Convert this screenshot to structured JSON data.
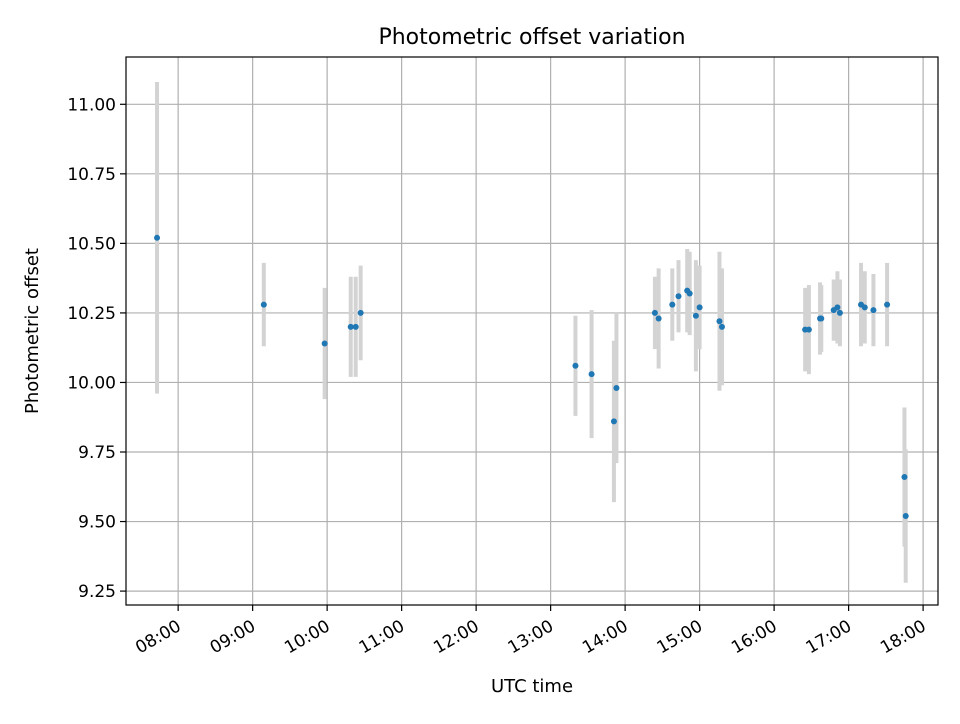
{
  "chart_data": {
    "type": "scatter",
    "title": "Photometric offset variation",
    "xlabel": "UTC time",
    "ylabel": "Photometric offset",
    "x_ticks": [
      "08:00",
      "09:00",
      "10:00",
      "11:00",
      "12:00",
      "13:00",
      "14:00",
      "15:00",
      "16:00",
      "17:00",
      "18:00"
    ],
    "y_ticks": [
      "9.25",
      "9.50",
      "9.75",
      "10.00",
      "10.25",
      "10.50",
      "10.75",
      "11.00"
    ],
    "x_range": [
      "07:18",
      "18:12"
    ],
    "y_range": [
      9.2,
      11.17
    ],
    "grid": true,
    "colors": {
      "point": "#1f77b4",
      "errorbar": "#d3d3d3",
      "grid": "#b0b0b0"
    },
    "points": [
      {
        "x": "07:43",
        "y": 10.52,
        "err": 0.56
      },
      {
        "x": "09:09",
        "y": 10.28,
        "err": 0.15
      },
      {
        "x": "09:58",
        "y": 10.14,
        "err": 0.2
      },
      {
        "x": "10:19",
        "y": 10.2,
        "err": 0.18
      },
      {
        "x": "10:23",
        "y": 10.2,
        "err": 0.18
      },
      {
        "x": "10:27",
        "y": 10.25,
        "err": 0.17
      },
      {
        "x": "13:20",
        "y": 10.06,
        "err": 0.18
      },
      {
        "x": "13:33",
        "y": 10.03,
        "err": 0.23
      },
      {
        "x": "13:51",
        "y": 9.86,
        "err": 0.29
      },
      {
        "x": "13:53",
        "y": 9.98,
        "err": 0.27
      },
      {
        "x": "14:24",
        "y": 10.25,
        "err": 0.13
      },
      {
        "x": "14:27",
        "y": 10.23,
        "err": 0.18
      },
      {
        "x": "14:38",
        "y": 10.28,
        "err": 0.13
      },
      {
        "x": "14:43",
        "y": 10.31,
        "err": 0.13
      },
      {
        "x": "14:50",
        "y": 10.33,
        "err": 0.15
      },
      {
        "x": "14:52",
        "y": 10.32,
        "err": 0.15
      },
      {
        "x": "14:57",
        "y": 10.24,
        "err": 0.2
      },
      {
        "x": "15:00",
        "y": 10.27,
        "err": 0.15
      },
      {
        "x": "15:16",
        "y": 10.22,
        "err": 0.25
      },
      {
        "x": "15:18",
        "y": 10.2,
        "err": 0.21
      },
      {
        "x": "16:25",
        "y": 10.19,
        "err": 0.15
      },
      {
        "x": "16:28",
        "y": 10.19,
        "err": 0.16
      },
      {
        "x": "16:37",
        "y": 10.23,
        "err": 0.13
      },
      {
        "x": "16:38",
        "y": 10.23,
        "err": 0.12
      },
      {
        "x": "16:48",
        "y": 10.26,
        "err": 0.11
      },
      {
        "x": "16:51",
        "y": 10.27,
        "err": 0.13
      },
      {
        "x": "16:53",
        "y": 10.25,
        "err": 0.12
      },
      {
        "x": "17:10",
        "y": 10.28,
        "err": 0.15
      },
      {
        "x": "17:13",
        "y": 10.27,
        "err": 0.13
      },
      {
        "x": "17:20",
        "y": 10.26,
        "err": 0.13
      },
      {
        "x": "17:31",
        "y": 10.28,
        "err": 0.15
      },
      {
        "x": "17:45",
        "y": 9.66,
        "err": 0.25
      },
      {
        "x": "17:46",
        "y": 9.52,
        "err": 0.24
      }
    ]
  }
}
